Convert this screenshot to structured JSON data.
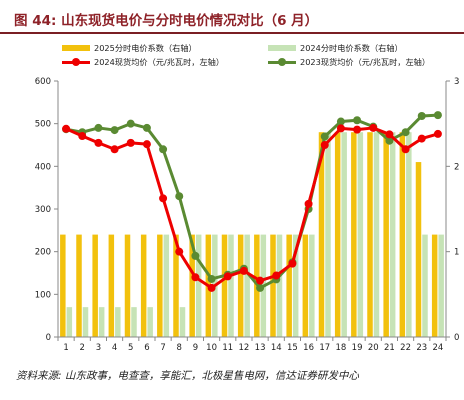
{
  "header": {
    "figure_title": "图 44:  山东现货电价与分时电价情况对比（6 月）"
  },
  "footer": {
    "source": "资料来源:  山东政事，电查查，享能汇，北极星售电网，信达证券研发中心"
  },
  "colors": {
    "bar_2025": "#f2c10d",
    "bar_2024": "#c6e3b6",
    "line_2024": "#ee0000",
    "line_2023": "#5a8a32",
    "title": "#8e2228"
  },
  "chart_data": {
    "type": "bar+line",
    "x": [
      1,
      2,
      3,
      4,
      5,
      6,
      7,
      8,
      9,
      10,
      11,
      12,
      13,
      14,
      15,
      16,
      17,
      18,
      19,
      20,
      21,
      22,
      23,
      24
    ],
    "x_tick_labels": [
      "1",
      "2",
      "3",
      "4",
      "5",
      "6",
      "7",
      "8",
      "9",
      "10",
      "11",
      "12",
      "13",
      "14",
      "15",
      "16",
      "17",
      "18",
      "19",
      "20",
      "21",
      "22",
      "23",
      "24"
    ],
    "y_left": {
      "range": [
        0,
        600
      ],
      "ticks": [
        0,
        100,
        200,
        300,
        400,
        500,
        600
      ]
    },
    "y_right": {
      "range": [
        0,
        3
      ],
      "ticks": [
        0,
        1,
        2,
        3
      ]
    },
    "grid": false,
    "legend_position": "top",
    "series": [
      {
        "name": "2025分时电价系数（右轴）",
        "type": "bar",
        "axis": "right",
        "values": [
          1.2,
          1.2,
          1.2,
          1.2,
          1.2,
          1.2,
          1.2,
          1.2,
          1.2,
          1.2,
          1.2,
          1.2,
          1.2,
          1.2,
          1.2,
          1.2,
          2.4,
          2.4,
          2.4,
          2.4,
          2.4,
          2.4,
          2.05,
          1.2
        ]
      },
      {
        "name": "2024分时电价系数（右轴）",
        "type": "bar",
        "axis": "right",
        "values": [
          0.35,
          0.35,
          0.35,
          0.35,
          0.35,
          0.35,
          1.2,
          0.35,
          1.2,
          1.2,
          1.2,
          1.2,
          1.2,
          1.2,
          1.2,
          1.2,
          2.4,
          2.4,
          2.4,
          2.4,
          2.4,
          2.4,
          1.2,
          1.2
        ]
      },
      {
        "name": "2024现货均价（元/兆瓦时，左轴）",
        "type": "line",
        "axis": "left",
        "values": [
          488,
          471,
          455,
          440,
          455,
          452,
          325,
          200,
          140,
          115,
          142,
          155,
          132,
          144,
          172,
          312,
          450,
          489,
          486,
          490,
          475,
          440,
          465,
          476
        ]
      },
      {
        "name": "2023现货均价（元/兆瓦时，左轴）",
        "type": "line",
        "axis": "left",
        "values": [
          487,
          480,
          490,
          485,
          500,
          490,
          440,
          330,
          190,
          136,
          146,
          160,
          115,
          135,
          175,
          300,
          470,
          505,
          508,
          493,
          460,
          480,
          518,
          520
        ]
      }
    ]
  }
}
